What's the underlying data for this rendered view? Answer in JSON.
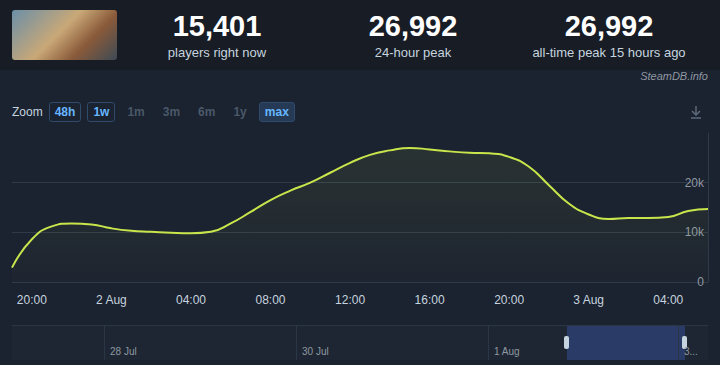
{
  "header": {
    "stats": [
      {
        "value": "15,401",
        "label": "players right now"
      },
      {
        "value": "26,992",
        "label": "24-hour peak"
      },
      {
        "value": "26,992",
        "label": "all-time peak 15 hours ago"
      }
    ],
    "source": "SteamDB.info"
  },
  "zoom": {
    "label": "Zoom",
    "buttons": [
      {
        "text": "48h",
        "active": true
      },
      {
        "text": "1w",
        "active": true
      },
      {
        "text": "1m",
        "active": false
      },
      {
        "text": "3m",
        "active": false
      },
      {
        "text": "6m",
        "active": false
      },
      {
        "text": "1y",
        "active": false
      },
      {
        "text": "max",
        "active": true
      }
    ]
  },
  "chart_data": {
    "type": "line",
    "categories": [
      null,
      "20:00",
      null,
      null,
      null,
      "2 Aug",
      null,
      null,
      null,
      "04:00",
      null,
      null,
      null,
      "08:00",
      null,
      null,
      null,
      "12:00",
      null,
      null,
      null,
      "16:00",
      null,
      null,
      null,
      "20:00",
      null,
      null,
      null,
      "3 Aug",
      null,
      null,
      null,
      "04:00",
      null,
      null
    ],
    "values": [
      2900,
      8600,
      11200,
      11800,
      11600,
      10800,
      10300,
      10100,
      9900,
      9800,
      10100,
      11800,
      14100,
      16500,
      18400,
      20000,
      22000,
      24000,
      25600,
      26500,
      26992,
      26700,
      26300,
      26000,
      25900,
      25200,
      23200,
      19500,
      15800,
      13600,
      12700,
      12900,
      12900,
      13100,
      14300,
      14700
    ],
    "color": "#c8e54b",
    "ylim": [
      0,
      30000
    ],
    "yticks": [
      0,
      {
        "value": 10000,
        "label": "10k"
      },
      {
        "value": 20000,
        "label": "20k"
      }
    ],
    "grid": true
  },
  "navigator": {
    "labels": [
      "28 Jul",
      "30 Jul",
      "1 Aug",
      "3..."
    ]
  }
}
